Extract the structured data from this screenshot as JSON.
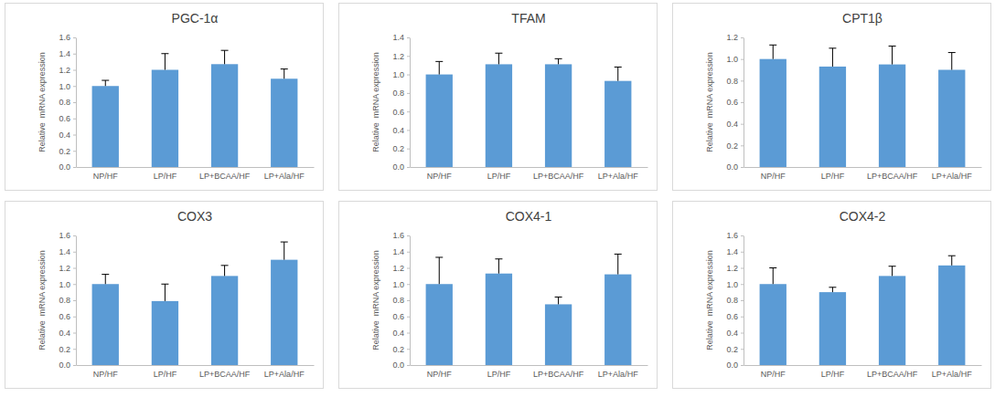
{
  "chart_data": [
    {
      "type": "bar",
      "title": "PGC-1α",
      "ylabel": "Relative  mRNA expression",
      "categories": [
        "NP/HF",
        "LP/HF",
        "LP+BCAA/HF",
        "LP+Ala/HF"
      ],
      "values": [
        1.0,
        1.2,
        1.27,
        1.09
      ],
      "errors": [
        0.07,
        0.2,
        0.17,
        0.12
      ],
      "color": "#5b9bd5",
      "ylim": [
        0,
        1.6
      ],
      "yticks": [
        {
          "value": 0,
          "label": "0.0"
        },
        0.2,
        0.4,
        0.6,
        0.8,
        {
          "value": 1,
          "label": "1.0"
        },
        1.2,
        1.4,
        1.6
      ]
    },
    {
      "type": "bar",
      "title": "TFAM",
      "ylabel": "Relative  mRNA expression",
      "categories": [
        "NP/HF",
        "LP/HF",
        "LP+BCAA/HF",
        "LP+Ala/HF"
      ],
      "values": [
        1.0,
        1.11,
        1.11,
        0.93
      ],
      "errors": [
        0.14,
        0.12,
        0.06,
        0.15
      ],
      "color": "#5b9bd5",
      "ylim": [
        0,
        1.4
      ],
      "yticks": [
        {
          "value": 0,
          "label": "0.0"
        },
        0.2,
        0.4,
        0.6,
        0.8,
        {
          "value": 1,
          "label": "1.0"
        },
        1.2,
        1.4
      ]
    },
    {
      "type": "bar",
      "title": "CPT1β",
      "ylabel": "Relative  mRNA expression",
      "categories": [
        "NP/HF",
        "LP/HF",
        "LP+BCAA/HF",
        "LP+Ala/HF"
      ],
      "values": [
        1.0,
        0.93,
        0.95,
        0.9
      ],
      "errors": [
        0.13,
        0.17,
        0.17,
        0.16
      ],
      "color": "#5b9bd5",
      "ylim": [
        0,
        1.2
      ],
      "yticks": [
        {
          "value": 0,
          "label": "0.0"
        },
        0.2,
        0.4,
        0.6,
        0.8,
        {
          "value": 1,
          "label": "1.0"
        },
        1.2
      ]
    },
    {
      "type": "bar",
      "title": "COX3",
      "ylabel": "Relative  mRNA expression",
      "categories": [
        "NP/HF",
        "LP/HF",
        "LP+BCAA/HF",
        "LP+Ala/HF"
      ],
      "values": [
        1.0,
        0.79,
        1.1,
        1.3
      ],
      "errors": [
        0.12,
        0.21,
        0.13,
        0.22
      ],
      "color": "#5b9bd5",
      "ylim": [
        0,
        1.6
      ],
      "yticks": [
        {
          "value": 0,
          "label": "0.0"
        },
        0.2,
        0.4,
        0.6,
        0.8,
        {
          "value": 1,
          "label": "1.0"
        },
        1.2,
        1.4,
        1.6
      ]
    },
    {
      "type": "bar",
      "title": "COX4-1",
      "ylabel": "Relative  mRNA expression",
      "categories": [
        "NP/HF",
        "LP/HF",
        "LP+BCAA/HF",
        "LP+Ala/HF"
      ],
      "values": [
        1.0,
        1.13,
        0.75,
        1.12
      ],
      "errors": [
        0.33,
        0.18,
        0.09,
        0.25
      ],
      "color": "#5b9bd5",
      "ylim": [
        0,
        1.6
      ],
      "yticks": [
        {
          "value": 0,
          "label": "0.0"
        },
        0.2,
        0.4,
        0.6,
        0.8,
        {
          "value": 1,
          "label": "1.0"
        },
        1.2,
        1.4,
        1.6
      ]
    },
    {
      "type": "bar",
      "title": "COX4-2",
      "ylabel": "Relative  mRNA expression",
      "categories": [
        "NP/HF",
        "LP/HF",
        "LP+BCAA/HF",
        "LP+Ala/HF"
      ],
      "values": [
        1.0,
        0.9,
        1.1,
        1.23
      ],
      "errors": [
        0.2,
        0.06,
        0.12,
        0.12
      ],
      "color": "#5b9bd5",
      "ylim": [
        0,
        1.6
      ],
      "yticks": [
        {
          "value": 0,
          "label": "0.0"
        },
        0.2,
        0.4,
        0.6,
        0.8,
        {
          "value": 1,
          "label": "1.0"
        },
        1.2,
        1.4,
        1.6
      ]
    }
  ]
}
